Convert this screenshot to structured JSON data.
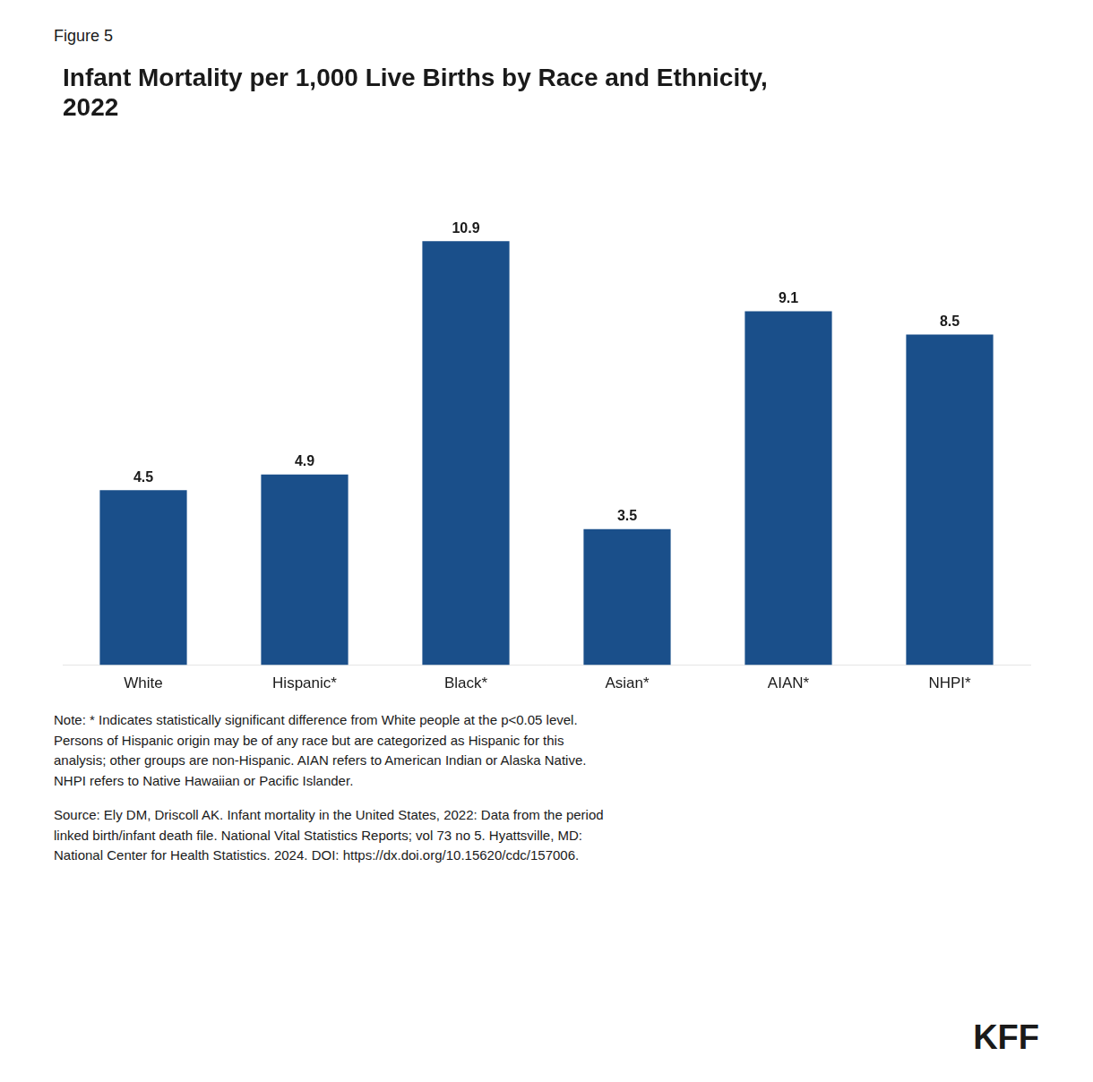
{
  "chart_data": {
    "type": "bar",
    "figure_label": "Figure 5",
    "title": "Infant Mortality per 1,000 Live Births by Race and Ethnicity,\n2022",
    "categories": [
      "White",
      "Hispanic*",
      "Black*",
      "Asian*",
      "AIAN*",
      "NHPI*"
    ],
    "values": [
      4.5,
      4.9,
      10.9,
      3.5,
      9.1,
      8.5
    ],
    "color": "#1a4f8a",
    "ylim": [
      0,
      13
    ],
    "grid": false,
    "data_labels": true,
    "tick_labels": "x",
    "note": "Note: * Indicates statistically significant difference from White people at the p<0.05 level.\nPersons of Hispanic origin may be of any race but are categorized as Hispanic for this\nanalysis; other groups are non-Hispanic. AIAN refers to American Indian or Alaska Native.\nNHPI refers to Native Hawaiian or Pacific Islander.",
    "source": "Source: Ely DM, Driscoll AK. Infant mortality in the United States, 2022: Data from the period\nlinked birth/infant death file. National Vital Statistics Reports; vol 73 no 5. Hyattsville, MD:\nNational Center for Health Statistics. 2024. DOI: https://dx.doi.org/10.15620/cdc/157006.",
    "logo": "KFF"
  }
}
